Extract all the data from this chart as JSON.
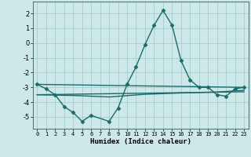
{
  "title": "",
  "xlabel": "Humidex (Indice chaleur)",
  "background_color": "#cce8e8",
  "grid_color": "#aacccc",
  "line_color": "#1a6b6b",
  "x_ticks": [
    0,
    1,
    2,
    3,
    4,
    5,
    6,
    7,
    8,
    9,
    10,
    11,
    12,
    13,
    14,
    15,
    16,
    17,
    18,
    19,
    20,
    21,
    22,
    23
  ],
  "ylim": [
    -5.8,
    2.8
  ],
  "yticks": [
    -5,
    -4,
    -3,
    -2,
    -1,
    0,
    1,
    2
  ],
  "series": [
    {
      "x": [
        0,
        1,
        2,
        3,
        4,
        5,
        6,
        8,
        9,
        10,
        11,
        12,
        13,
        14,
        15,
        16,
        17,
        18,
        19,
        20,
        21,
        22,
        23
      ],
      "y": [
        -2.8,
        -3.1,
        -3.5,
        -4.3,
        -4.7,
        -5.3,
        -4.9,
        -5.3,
        -4.4,
        -2.8,
        -1.6,
        -0.1,
        1.2,
        2.2,
        1.2,
        -1.2,
        -2.5,
        -3.0,
        -3.0,
        -3.5,
        -3.6,
        -3.1,
        -3.0
      ],
      "marker": "D",
      "markersize": 2.5,
      "linewidth": 1.0
    },
    {
      "x": [
        0,
        23
      ],
      "y": [
        -2.8,
        -3.0
      ],
      "marker": null,
      "linewidth": 1.0
    },
    {
      "x": [
        0,
        23
      ],
      "y": [
        -3.5,
        -3.3
      ],
      "marker": null,
      "linewidth": 1.0
    },
    {
      "x": [
        0,
        4,
        8,
        12,
        16,
        20,
        23
      ],
      "y": [
        -3.5,
        -3.55,
        -3.65,
        -3.47,
        -3.38,
        -3.32,
        -3.2
      ],
      "marker": null,
      "linewidth": 1.0
    }
  ]
}
